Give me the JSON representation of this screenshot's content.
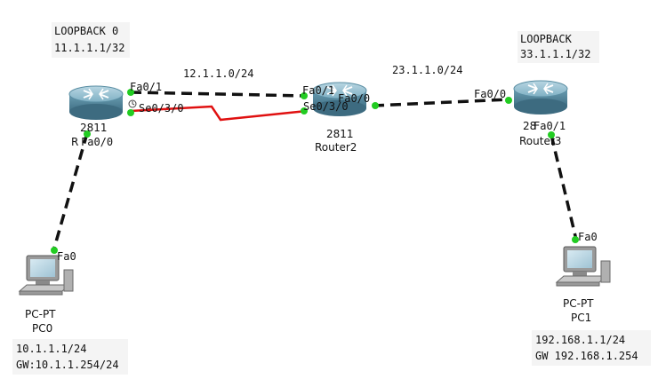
{
  "notes": {
    "loopback0_title": "LOOPBACK 0",
    "loopback0_addr": "11.1.1.1/32",
    "loopback3_title": "LOOPBACK",
    "loopback3_addr": "33.1.1.1/32",
    "pc0_ip": "10.1.1.1/24",
    "pc0_gw": "GW:10.1.1.254/24",
    "pc1_ip": "192.168.1.1/24",
    "pc1_gw": "GW 192.168.1.254"
  },
  "networks": {
    "net_r1_r2": "12.1.1.0/24",
    "net_r2_r3": "23.1.1.0/24"
  },
  "devices": {
    "router1": {
      "model": "2811",
      "name": "R"
    },
    "router2": {
      "model": "2811",
      "name": "Router2"
    },
    "router3": {
      "model": "28",
      "name": "Router3"
    },
    "pc0": {
      "model": "PC-PT",
      "name": "PC0"
    },
    "pc1": {
      "model": "PC-PT",
      "name": "PC1"
    }
  },
  "ports": {
    "r1_fa01": "Fa0/1",
    "r1_se030": "Se0/3/0",
    "r1_fa00": "Fa0/0",
    "r2_fa01": "Fa0/1",
    "r2_se030": "Se0/3/0",
    "r2_fa00": "Fa0/0",
    "r3_fa00": "Fa0/0",
    "r3_fa01": "Fa0/1",
    "pc0_fa0": "Fa0",
    "pc1_fa0": "Fa0"
  },
  "colors": {
    "ethernet_link": "#111111",
    "serial_link": "#e01010",
    "link_up": "#22cc22",
    "router_body": "#6b9fb4"
  }
}
